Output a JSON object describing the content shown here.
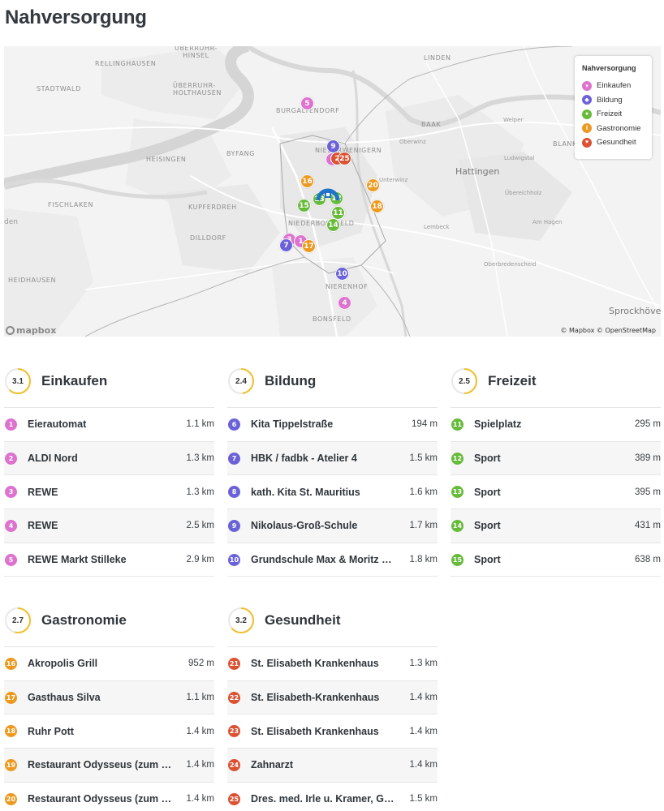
{
  "page_title": "Nahversorgung",
  "colors": {
    "einkaufen": "#dd72cf",
    "bildung": "#6b62d9",
    "freizeit": "#67bb3b",
    "gastronomie": "#ec9a1f",
    "gesundheit": "#db5233",
    "score_ring": "#f0c02c",
    "home": "#1f73c9"
  },
  "map": {
    "legend_title": "Nahversorgung",
    "legend": [
      {
        "label": "Einkaufen",
        "icon": "cart-icon"
      },
      {
        "label": "Bildung",
        "icon": "cap-icon"
      },
      {
        "label": "Freizeit",
        "icon": "leaf-icon"
      },
      {
        "label": "Gastronomie",
        "icon": "cutlery-icon"
      },
      {
        "label": "Gesundheit",
        "icon": "heart-icon"
      }
    ],
    "places": {
      "oberruhr": "ÜBERRUHR-\nHINSEL",
      "rellinghausen": "RELLINGHAUSEN",
      "stadtwald": "STADTWALD",
      "holthausen": "ÜBERRUHR-\nHOLTHAUSEN",
      "burgaltendorf": "BURGALTENDORF",
      "linden": "LINDEN",
      "baak": "BAAK",
      "welper": "Welper",
      "heisingen": "HEISINGEN",
      "byfang": "BYFANG",
      "niederwenigern": "NIEDERWENIGERN",
      "oberwinz": "Oberwinz",
      "blankenstein": "BLANKEN",
      "ludwigstal": "Ludwigstal",
      "hattingen": "Hattingen",
      "unterwinz": "Unterwinz",
      "fischlaken": "FISCHLAKEN",
      "kupferdreh": "KUPFERDREH",
      "uberelcholz": "Übereichholz",
      "niederbonsfeld": "NIEDERBONSFELD",
      "lembeck": "Lembeck",
      "amhagen": "Am Hagen",
      "dilldorf": "DILLDORF",
      "den": "den",
      "heidhausen": "HEIDHAUSEN",
      "oberbredenscheid": "Oberbredenscheid",
      "nierenhof": "NIERENHOF",
      "bonsfeld": "BONSFELD",
      "sprockhoevel": "Sprockhövel"
    },
    "mapbox_logo": "mapbox",
    "attribution": "© Mapbox © OpenStreetMap"
  },
  "categories": [
    {
      "key": "einkaufen",
      "title": "Einkaufen",
      "score": "3.1",
      "score_value": 3.1,
      "items": [
        {
          "num": "1",
          "name": "Eierautomat",
          "dist": "1.1 km"
        },
        {
          "num": "2",
          "name": "ALDI Nord",
          "dist": "1.3 km"
        },
        {
          "num": "3",
          "name": "REWE",
          "dist": "1.3 km"
        },
        {
          "num": "4",
          "name": "REWE",
          "dist": "2.5 km"
        },
        {
          "num": "5",
          "name": "REWE Markt Stilleke",
          "dist": "2.9 km"
        }
      ]
    },
    {
      "key": "bildung",
      "title": "Bildung",
      "score": "2.4",
      "score_value": 2.4,
      "items": [
        {
          "num": "6",
          "name": "Kita Tippelstraße",
          "dist": "194 m"
        },
        {
          "num": "7",
          "name": "HBK / fadbk - Atelier 4",
          "dist": "1.5 km"
        },
        {
          "num": "8",
          "name": "kath. Kita St. Mauritius",
          "dist": "1.6 km"
        },
        {
          "num": "9",
          "name": "Nikolaus-Groß-Schule",
          "dist": "1.7 km"
        },
        {
          "num": "10",
          "name": "Grundschule Max & Moritz …",
          "dist": "1.8 km"
        }
      ]
    },
    {
      "key": "freizeit",
      "title": "Freizeit",
      "score": "2.5",
      "score_value": 2.5,
      "items": [
        {
          "num": "11",
          "name": "Spielplatz",
          "dist": "295 m"
        },
        {
          "num": "12",
          "name": "Sport",
          "dist": "389 m"
        },
        {
          "num": "13",
          "name": "Sport",
          "dist": "395 m"
        },
        {
          "num": "14",
          "name": "Sport",
          "dist": "431 m"
        },
        {
          "num": "15",
          "name": "Sport",
          "dist": "638 m"
        }
      ]
    },
    {
      "key": "gastronomie",
      "title": "Gastronomie",
      "score": "2.7",
      "score_value": 2.7,
      "items": [
        {
          "num": "16",
          "name": "Akropolis Grill",
          "dist": "952 m"
        },
        {
          "num": "17",
          "name": "Gasthaus Silva",
          "dist": "1.1 km"
        },
        {
          "num": "18",
          "name": "Ruhr Pott",
          "dist": "1.4 km"
        },
        {
          "num": "19",
          "name": "Restaurant Odysseus (zum …",
          "dist": "1.4 km"
        },
        {
          "num": "20",
          "name": "Restaurant Odysseus (zum …",
          "dist": "1.4 km"
        }
      ]
    },
    {
      "key": "gesundheit",
      "title": "Gesundheit",
      "score": "3.2",
      "score_value": 3.2,
      "items": [
        {
          "num": "21",
          "name": "St. Elisabeth Krankenhaus",
          "dist": "1.3 km"
        },
        {
          "num": "22",
          "name": "St. Elisabeth-Krankenhaus",
          "dist": "1.4 km"
        },
        {
          "num": "23",
          "name": "St. Elisabeth Krankenhaus",
          "dist": "1.4 km"
        },
        {
          "num": "24",
          "name": "Zahnarzt",
          "dist": "1.4 km"
        },
        {
          "num": "25",
          "name": "Dres. med. Irle u. Kramer, G…",
          "dist": "1.5 km"
        }
      ]
    }
  ]
}
